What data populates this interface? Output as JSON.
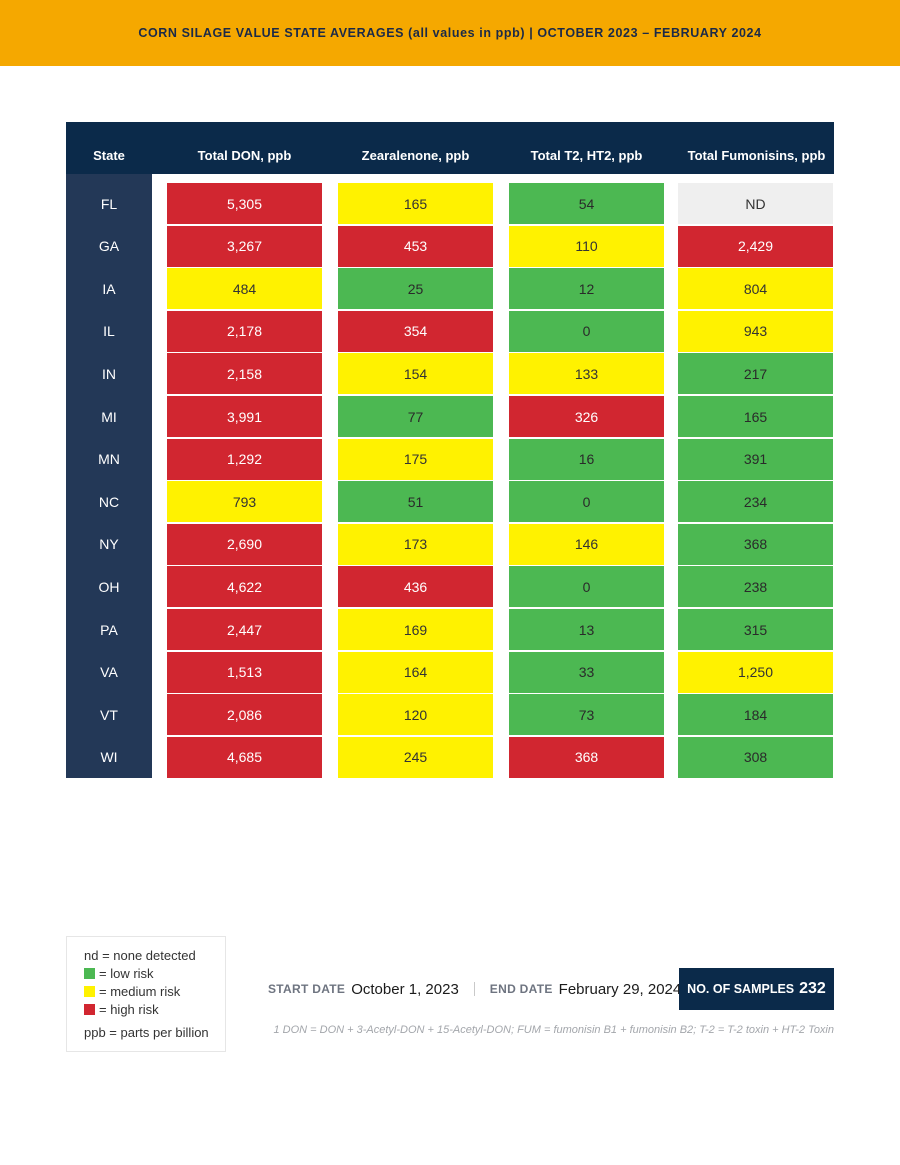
{
  "title": "CORN SILAGE VALUE STATE AVERAGES (all values in ppb) | OCTOBER 2023 – FEBRUARY 2024",
  "colors": {
    "high": "#d12630",
    "medium": "#fff200",
    "low": "#4cb852",
    "nd": "#efefef",
    "header": "#0b2a4a",
    "banner": "#f5a800"
  },
  "table": {
    "headers": [
      "State",
      "Total DON, ppb",
      "Zearalenone, ppb",
      "Total T2, HT2, ppb",
      "Total Fumonisins, ppb"
    ],
    "rows": [
      {
        "state": "FL",
        "cells": [
          {
            "v": "5,305",
            "r": "high"
          },
          {
            "v": "165",
            "r": "med"
          },
          {
            "v": "54",
            "r": "low"
          },
          {
            "v": "ND",
            "r": "nd"
          }
        ]
      },
      {
        "state": "GA",
        "cells": [
          {
            "v": "3,267",
            "r": "high"
          },
          {
            "v": "453",
            "r": "high"
          },
          {
            "v": "110",
            "r": "med"
          },
          {
            "v": "2,429",
            "r": "high"
          }
        ]
      },
      {
        "state": "IA",
        "cells": [
          {
            "v": "484",
            "r": "med"
          },
          {
            "v": "25",
            "r": "low"
          },
          {
            "v": "12",
            "r": "low"
          },
          {
            "v": "804",
            "r": "med"
          }
        ]
      },
      {
        "state": "IL",
        "cells": [
          {
            "v": "2,178",
            "r": "high"
          },
          {
            "v": "354",
            "r": "high"
          },
          {
            "v": "0",
            "r": "low"
          },
          {
            "v": "943",
            "r": "med"
          }
        ]
      },
      {
        "state": "IN",
        "cells": [
          {
            "v": "2,158",
            "r": "high"
          },
          {
            "v": "154",
            "r": "med"
          },
          {
            "v": "133",
            "r": "med"
          },
          {
            "v": "217",
            "r": "low"
          }
        ]
      },
      {
        "state": "MI",
        "cells": [
          {
            "v": "3,991",
            "r": "high"
          },
          {
            "v": "77",
            "r": "low"
          },
          {
            "v": "326",
            "r": "high"
          },
          {
            "v": "165",
            "r": "low"
          }
        ]
      },
      {
        "state": "MN",
        "cells": [
          {
            "v": "1,292",
            "r": "high"
          },
          {
            "v": "175",
            "r": "med"
          },
          {
            "v": "16",
            "r": "low"
          },
          {
            "v": "391",
            "r": "low"
          }
        ]
      },
      {
        "state": "NC",
        "cells": [
          {
            "v": "793",
            "r": "med"
          },
          {
            "v": "51",
            "r": "low"
          },
          {
            "v": "0",
            "r": "low"
          },
          {
            "v": "234",
            "r": "low"
          }
        ]
      },
      {
        "state": "NY",
        "cells": [
          {
            "v": "2,690",
            "r": "high"
          },
          {
            "v": "173",
            "r": "med"
          },
          {
            "v": "146",
            "r": "med"
          },
          {
            "v": "368",
            "r": "low"
          }
        ]
      },
      {
        "state": "OH",
        "cells": [
          {
            "v": "4,622",
            "r": "high"
          },
          {
            "v": "436",
            "r": "high"
          },
          {
            "v": "0",
            "r": "low"
          },
          {
            "v": "238",
            "r": "low"
          }
        ]
      },
      {
        "state": "PA",
        "cells": [
          {
            "v": "2,447",
            "r": "high"
          },
          {
            "v": "169",
            "r": "med"
          },
          {
            "v": "13",
            "r": "low"
          },
          {
            "v": "315",
            "r": "low"
          }
        ]
      },
      {
        "state": "VA",
        "cells": [
          {
            "v": "1,513",
            "r": "high"
          },
          {
            "v": "164",
            "r": "med"
          },
          {
            "v": "33",
            "r": "low"
          },
          {
            "v": "1,250",
            "r": "med"
          }
        ]
      },
      {
        "state": "VT",
        "cells": [
          {
            "v": "2,086",
            "r": "high"
          },
          {
            "v": "120",
            "r": "med"
          },
          {
            "v": "73",
            "r": "low"
          },
          {
            "v": "184",
            "r": "low"
          }
        ]
      },
      {
        "state": "WI",
        "cells": [
          {
            "v": "4,685",
            "r": "high"
          },
          {
            "v": "245",
            "r": "med"
          },
          {
            "v": "368",
            "r": "high"
          },
          {
            "v": "308",
            "r": "low"
          }
        ]
      }
    ]
  },
  "legend": {
    "nd": "nd  = none detected",
    "low": "= low risk",
    "medium": "= medium risk",
    "high": "= high risk",
    "ppb": "ppb = parts per billion"
  },
  "footer": {
    "start_label": "START DATE",
    "start_date": "October 1, 2023",
    "end_label": "END DATE",
    "end_date": "February 29, 2024",
    "samples_label": "NO. OF SAMPLES",
    "samples_count": "232",
    "footnote": "1 DON = DON + 3-Acetyl-DON + 15-Acetyl-DON; FUM = fumonisin B1 + fumonisin B2; T-2 = T-2 toxin + HT-2 Toxin"
  }
}
